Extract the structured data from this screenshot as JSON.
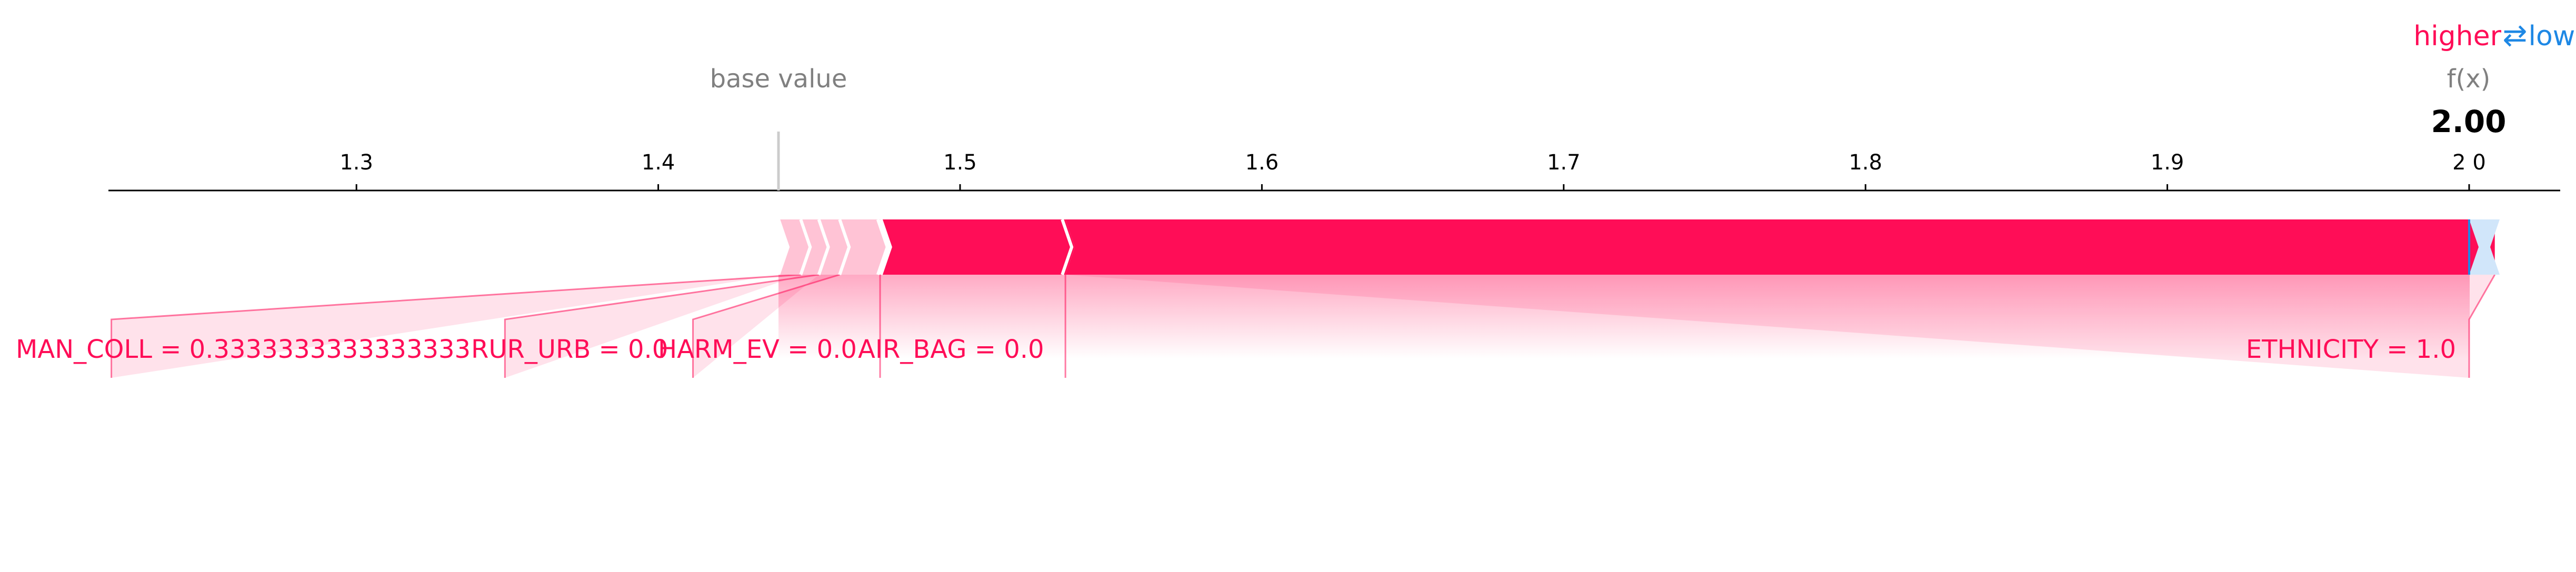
{
  "legend": {
    "higher_label": "higher",
    "lower_label": "lower",
    "arrow": "⇄"
  },
  "base_value_label": "base value",
  "fx_label": "f(x)",
  "fx_value_text": "2.00",
  "colors": {
    "positive": "#ff0d57",
    "positive_light": "#ffc3d5",
    "negative": "#1e88e5",
    "negative_light": "#d1e6fa",
    "axis": "#000000",
    "muted": "#808080"
  },
  "chart_data": {
    "type": "force",
    "base_value": 1.4404,
    "output_value": 2.0,
    "xlim": [
      1.218,
      2.03
    ],
    "ticks": [
      1.3,
      1.4,
      1.5,
      1.6,
      1.7,
      1.8,
      1.9,
      2.0
    ],
    "tick_labels": [
      "1.3",
      "1.4",
      "1.5",
      "1.6",
      "1.7",
      "1.8",
      "1.9",
      "2 0"
    ],
    "features_higher": [
      {
        "name": "MAN_COLL",
        "value": "0.3333333333333333",
        "label": "MAN_COLL = 0.3333333333333333",
        "start": 1.4404,
        "end": 1.4472,
        "shown": true
      },
      {
        "name": "RUR_URB",
        "value": "0.0",
        "label": "RUR_URB = 0.0",
        "start": 1.4472,
        "end": 1.4532,
        "shown": true
      },
      {
        "name": "HARM_EV",
        "value": "0.0",
        "label": "HARM_EV = 0.0",
        "start": 1.4532,
        "end": 1.4601,
        "shown": true
      },
      {
        "name": "AIR_BAG",
        "value": "0.0",
        "label": "AIR_BAG = 0.0",
        "start": 1.4601,
        "end": 1.4738,
        "shown": true
      },
      {
        "name": "",
        "value": "",
        "label": "",
        "start": 1.4738,
        "end": 1.5349,
        "shown": false
      },
      {
        "name": "ETHNICITY",
        "value": "1.0",
        "label": "ETHNICITY  = 1.0",
        "start": 1.5349,
        "end": 2.0085,
        "shown": true
      }
    ],
    "features_lower": [
      {
        "name": "",
        "value": "",
        "label": "",
        "start": 2.0085,
        "end": 2.0,
        "shown": false
      }
    ],
    "label_anchors": [
      {
        "label": "MAN_COLL = 0.3333333333333333",
        "at": 1.2188
      },
      {
        "label": "RUR_URB = 0.0",
        "at": 1.3492
      },
      {
        "label": "HARM_EV = 0.0",
        "at": 1.4115
      },
      {
        "label": "AIR_BAG = 0.0",
        "at": 1.4735
      },
      {
        "label": "ETHNICITY  = 1.0",
        "at": 2.0
      }
    ]
  }
}
